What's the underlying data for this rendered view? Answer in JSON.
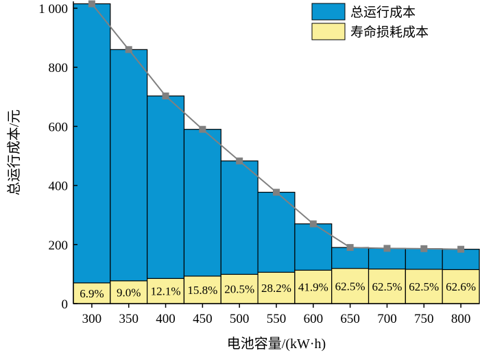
{
  "chart_data": {
    "type": "bar",
    "categories": [
      "300",
      "350",
      "400",
      "450",
      "500",
      "550",
      "600",
      "650",
      "700",
      "750",
      "800"
    ],
    "series": [
      {
        "name": "总运行成本",
        "values": [
          1015,
          860,
          703,
          590,
          483,
          377,
          270,
          190,
          187,
          186,
          184
        ]
      },
      {
        "name": "寿命损耗成本",
        "values": [
          70,
          77,
          85,
          93,
          99,
          106,
          113,
          119,
          117,
          116,
          115
        ]
      }
    ],
    "line_values": [
      1015,
      860,
      703,
      590,
      483,
      377,
      270,
      190,
      187,
      186,
      184
    ],
    "percent_labels": [
      "6.9%",
      "9.0%",
      "12.1%",
      "15.8%",
      "20.5%",
      "28.2%",
      "41.9%",
      "62.5%",
      "62.5%",
      "62.5%",
      "62.6%"
    ],
    "xlabel": "电池容量/(kW·h)",
    "ylabel": "总运行成本/元",
    "ylim": [
      0,
      1000
    ],
    "yticks": [
      0,
      200,
      400,
      600,
      800,
      1000
    ],
    "ytick_labels": [
      "0",
      "200",
      "400",
      "600",
      "800",
      "1 000"
    ],
    "colors": {
      "total": "#0a96d2",
      "loss": "#faf09b",
      "line": "#808080",
      "marker": "#808080"
    },
    "legend_position": "top-right"
  }
}
